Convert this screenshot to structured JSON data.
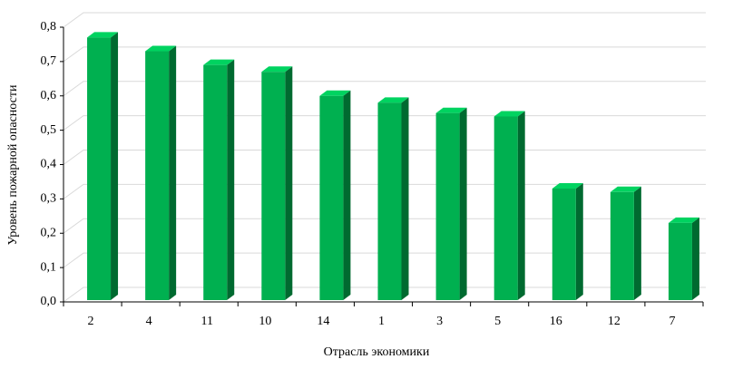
{
  "chart_data": {
    "type": "bar3d",
    "x_label": "Отрасль экономики",
    "y_label": "Уровень пожарной опасности",
    "categories": [
      "2",
      "4",
      "11",
      "10",
      "14",
      "1",
      "3",
      "5",
      "16",
      "12",
      "7"
    ],
    "values": [
      0.77,
      0.73,
      0.69,
      0.67,
      0.6,
      0.58,
      0.55,
      0.54,
      0.33,
      0.32,
      0.23
    ],
    "color": "#00b050",
    "ylim": [
      0,
      0.8
    ],
    "yticks": [
      {
        "value": 0,
        "label": "0,0"
      },
      {
        "value": 0.1,
        "label": "0,1"
      },
      {
        "value": 0.2,
        "label": "0,2"
      },
      {
        "value": 0.3,
        "label": "0,3"
      },
      {
        "value": 0.4,
        "label": "0,4"
      },
      {
        "value": 0.5,
        "label": "0,5"
      },
      {
        "value": 0.6,
        "label": "0,6"
      },
      {
        "value": 0.7,
        "label": "0,7"
      },
      {
        "value": 0.8,
        "label": "0,8"
      }
    ],
    "grid": true
  }
}
